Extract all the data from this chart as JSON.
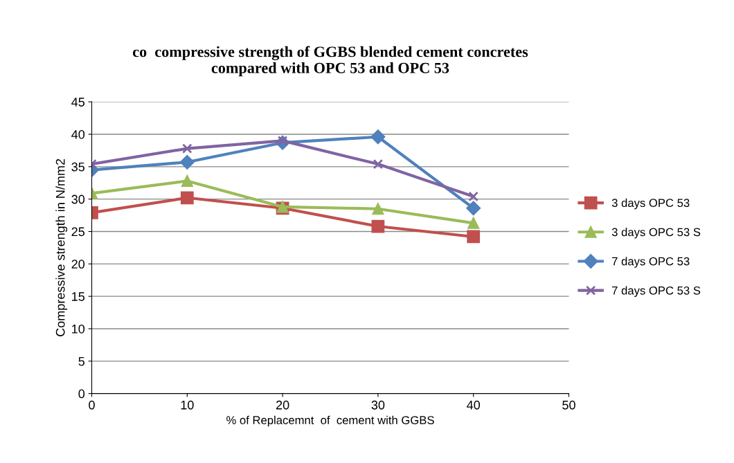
{
  "chart_data": {
    "type": "line",
    "title": "co  compressive strength of GGBS blended cement concretes\ncompared with OPC 53 and OPC 53",
    "xlabel": "% of Replacemnt  of  cement with GGBS",
    "ylabel": "Compressive strength in N/mm2",
    "x": [
      0,
      10,
      20,
      30,
      40
    ],
    "series": [
      {
        "name": "3 days OPC 53",
        "color": "#c0504d",
        "marker": "square",
        "values": [
          27.9,
          30.2,
          28.6,
          25.8,
          24.2
        ]
      },
      {
        "name": "3 days OPC 53 S",
        "color": "#9bbb59",
        "marker": "triangle",
        "values": [
          30.9,
          32.8,
          28.8,
          28.5,
          26.3
        ]
      },
      {
        "name": "7 days OPC 53",
        "color": "#4f81bd",
        "marker": "diamond",
        "values": [
          34.5,
          35.7,
          38.7,
          39.6,
          28.6
        ]
      },
      {
        "name": "7 days OPC 53 S",
        "color": "#8064a2",
        "marker": "cross",
        "values": [
          35.4,
          37.8,
          39.0,
          35.4,
          30.4
        ]
      }
    ],
    "xlim": [
      0,
      50
    ],
    "xticks": [
      0,
      10,
      20,
      30,
      40,
      50
    ],
    "ylim": [
      0,
      45
    ],
    "yticks": [
      0,
      5,
      10,
      15,
      20,
      25,
      30,
      35,
      40,
      45
    ],
    "grid": "y",
    "legend": "right",
    "line_style": "solid"
  }
}
